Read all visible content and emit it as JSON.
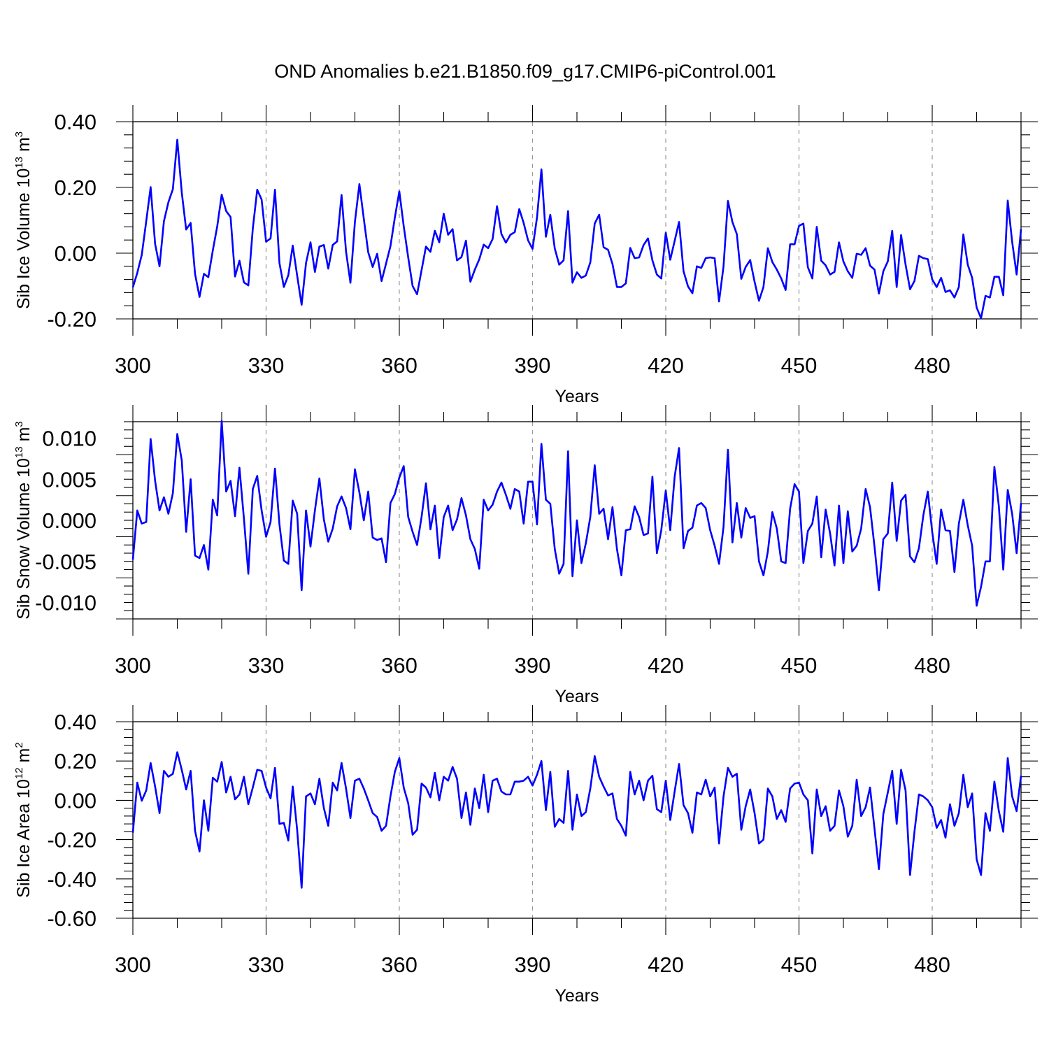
{
  "title": "OND Anomalies b.e21.B1850.f09_g17.CMIP6-piControl.001",
  "colors": {
    "line": "#0000ff",
    "axis": "#000000",
    "grid": "#999999"
  },
  "chart_data": [
    {
      "type": "line",
      "ylabel": {
        "base": "Sib Ice Volume 10",
        "exp": "13",
        "unit": " m",
        "unit_exp": "3"
      },
      "xlabel": "Years",
      "xlim": [
        300,
        500
      ],
      "ylim": [
        -0.2,
        0.4
      ],
      "xticks": [
        300,
        330,
        360,
        390,
        420,
        450,
        480
      ],
      "xtick_labels": [
        "300",
        "330",
        "360",
        "390",
        "420",
        "450",
        "480"
      ],
      "yticks": [
        -0.2,
        0.0,
        0.2,
        0.4
      ],
      "ytick_labels": [
        "-0.20",
        "0.00",
        "0.20",
        "0.40"
      ],
      "series": [
        {
          "name": "Sib Ice Volume",
          "color": "#0000ff",
          "x_start": 300,
          "values": [
            -0.104,
            -0.06,
            -0.005,
            0.097,
            0.201,
            0.028,
            -0.04,
            0.097,
            0.155,
            0.195,
            0.345,
            0.185,
            0.072,
            0.092,
            -0.063,
            -0.133,
            -0.063,
            -0.073,
            0.008,
            0.081,
            0.178,
            0.128,
            0.11,
            -0.071,
            -0.023,
            -0.089,
            -0.098,
            0.075,
            0.193,
            0.163,
            0.035,
            0.045,
            0.193,
            -0.03,
            -0.103,
            -0.067,
            0.023,
            -0.068,
            -0.157,
            -0.03,
            0.033,
            -0.057,
            0.02,
            0.025,
            -0.047,
            0.025,
            0.036,
            0.177,
            0.005,
            -0.09,
            0.095,
            0.21,
            0.105,
            0.003,
            -0.042,
            -0.002,
            -0.085,
            -0.032,
            0.021,
            0.108,
            0.188,
            0.082,
            -0.013,
            -0.1,
            -0.125,
            -0.052,
            0.02,
            0.004,
            0.068,
            0.033,
            0.12,
            0.056,
            0.073,
            -0.022,
            -0.012,
            0.038,
            -0.087,
            -0.05,
            -0.019,
            0.026,
            0.015,
            0.043,
            0.143,
            0.058,
            0.032,
            0.056,
            0.064,
            0.134,
            0.092,
            0.039,
            0.013,
            0.109,
            0.255,
            0.05,
            0.117,
            0.014,
            -0.035,
            -0.022,
            0.128,
            -0.09,
            -0.058,
            -0.075,
            -0.068,
            -0.028,
            0.09,
            0.117,
            0.018,
            0.01,
            -0.033,
            -0.103,
            -0.103,
            -0.092,
            0.016,
            -0.015,
            -0.013,
            0.025,
            0.045,
            -0.022,
            -0.065,
            -0.077,
            0.062,
            -0.02,
            0.037,
            0.095,
            -0.055,
            -0.101,
            -0.122,
            -0.04,
            -0.045,
            -0.015,
            -0.013,
            -0.015,
            -0.147,
            -0.04,
            0.159,
            0.095,
            0.058,
            -0.078,
            -0.042,
            -0.021,
            -0.087,
            -0.145,
            -0.103,
            0.015,
            -0.027,
            -0.05,
            -0.077,
            -0.112,
            0.027,
            0.027,
            0.083,
            0.09,
            -0.043,
            -0.077,
            0.08,
            -0.023,
            -0.037,
            -0.065,
            -0.057,
            0.033,
            -0.025,
            -0.055,
            -0.075,
            -0.002,
            -0.005,
            0.015,
            -0.038,
            -0.05,
            -0.123,
            -0.055,
            -0.025,
            0.068,
            -0.103,
            0.055,
            -0.035,
            -0.11,
            -0.085,
            -0.008,
            -0.015,
            -0.018,
            -0.08,
            -0.103,
            -0.075,
            -0.118,
            -0.113,
            -0.135,
            -0.103,
            0.057,
            -0.035,
            -0.075,
            -0.165,
            -0.198,
            -0.13,
            -0.135,
            -0.072,
            -0.072,
            -0.128,
            0.16,
            0.035,
            -0.065,
            0.073
          ]
        }
      ]
    },
    {
      "type": "line",
      "ylabel": {
        "base": "Sib Snow Volume 10",
        "exp": "13",
        "unit": " m",
        "unit_exp": "3"
      },
      "xlabel": "Years",
      "xlim": [
        300,
        500
      ],
      "ylim": [
        -0.012,
        0.012
      ],
      "xticks": [
        300,
        330,
        360,
        390,
        420,
        450,
        480
      ],
      "xtick_labels": [
        "300",
        "330",
        "360",
        "390",
        "420",
        "450",
        "480"
      ],
      "yticks": [
        -0.01,
        -0.005,
        0.0,
        0.005,
        0.01
      ],
      "ytick_labels": [
        "-0.010",
        "-0.005",
        "0.000",
        "0.005",
        "0.010"
      ],
      "series": [
        {
          "name": "Sib Snow Volume",
          "color": "#0000ff",
          "x_start": 300,
          "values": [
            -0.0048,
            0.0012,
            -0.0004,
            -0.0002,
            0.0099,
            0.0048,
            0.0012,
            0.0028,
            0.0008,
            0.0033,
            0.0105,
            0.0073,
            -0.0014,
            0.005,
            -0.0043,
            -0.0046,
            -0.003,
            -0.006,
            0.0025,
            0.0006,
            0.0121,
            0.0035,
            0.0048,
            0.0005,
            0.0064,
            0.0002,
            -0.0065,
            0.0038,
            0.0054,
            0.0012,
            -0.002,
            -0.0002,
            0.0063,
            -0.0005,
            -0.0049,
            -0.0053,
            0.0024,
            0.0008,
            -0.0085,
            0.0012,
            -0.0032,
            0.0012,
            0.0051,
            0.0001,
            -0.0026,
            -0.001,
            0.0017,
            0.0029,
            0.0015,
            -0.0011,
            0.0062,
            0.0034,
            0.0,
            0.0035,
            -0.0021,
            -0.0024,
            -0.0022,
            -0.0051,
            0.0021,
            0.0032,
            0.0052,
            0.0066,
            0.0004,
            -0.0014,
            -0.003,
            0.0004,
            0.0045,
            -0.0011,
            0.0018,
            -0.0046,
            0.0004,
            0.0018,
            -0.0012,
            0.0001,
            0.0027,
            0.0006,
            -0.0023,
            -0.0035,
            -0.0059,
            0.0025,
            0.0012,
            0.0019,
            0.0035,
            0.0046,
            0.0031,
            0.0014,
            0.0038,
            0.0035,
            -0.0004,
            0.0047,
            0.0047,
            -0.0005,
            0.0093,
            0.0025,
            0.002,
            -0.0035,
            -0.0065,
            -0.0053,
            0.0084,
            -0.0068,
            0.0,
            -0.0052,
            -0.0028,
            0.0004,
            0.0067,
            0.0008,
            0.0014,
            -0.0023,
            0.0016,
            -0.0035,
            -0.0067,
            -0.0012,
            -0.0011,
            0.0017,
            0.0004,
            -0.0018,
            -0.0016,
            0.0053,
            -0.004,
            -0.0012,
            0.0036,
            -0.0012,
            0.0053,
            0.0088,
            -0.0034,
            -0.0013,
            -0.0009,
            0.0018,
            0.0021,
            0.0015,
            -0.0012,
            -0.0031,
            -0.0053,
            -0.0008,
            0.0086,
            -0.0027,
            0.0021,
            -0.0021,
            0.0015,
            0.0003,
            0.0005,
            -0.005,
            -0.0067,
            -0.0038,
            0.001,
            -0.001,
            -0.005,
            -0.0052,
            0.0014,
            0.0044,
            0.0035,
            -0.0052,
            -0.0013,
            -0.0004,
            0.0029,
            -0.0045,
            0.0013,
            -0.0016,
            -0.0055,
            0.0018,
            -0.0052,
            0.0011,
            -0.0038,
            -0.0031,
            -0.001,
            0.0038,
            0.0016,
            -0.0032,
            -0.0085,
            -0.0023,
            -0.0016,
            0.0046,
            -0.0025,
            0.0024,
            0.0031,
            -0.0044,
            -0.0051,
            -0.0034,
            0.0006,
            0.0035,
            -0.0014,
            -0.0053,
            0.0013,
            -0.0012,
            -0.0013,
            -0.0063,
            -0.0004,
            0.0025,
            -0.0006,
            -0.0031,
            -0.0104,
            -0.0081,
            -0.005,
            -0.005,
            0.0065,
            0.0017,
            -0.006,
            0.0037,
            0.0008,
            -0.004,
            0.0021
          ]
        }
      ]
    },
    {
      "type": "line",
      "ylabel": {
        "base": "Sib Ice Area 10",
        "exp": "12",
        "unit": " m",
        "unit_exp": "2"
      },
      "xlabel": "Years",
      "xlim": [
        300,
        500
      ],
      "ylim": [
        -0.6,
        0.4
      ],
      "xticks": [
        300,
        330,
        360,
        390,
        420,
        450,
        480
      ],
      "xtick_labels": [
        "300",
        "330",
        "360",
        "390",
        "420",
        "450",
        "480"
      ],
      "yticks": [
        -0.6,
        -0.4,
        -0.2,
        0.0,
        0.2,
        0.4
      ],
      "ytick_labels": [
        "-0.60",
        "-0.40",
        "-0.20",
        "0.00",
        "0.20",
        "0.40"
      ],
      "series": [
        {
          "name": "Sib Ice Area",
          "color": "#0000ff",
          "x_start": 300,
          "values": [
            -0.165,
            0.09,
            -0.002,
            0.05,
            0.19,
            0.07,
            -0.065,
            0.15,
            0.12,
            0.135,
            0.245,
            0.155,
            0.055,
            0.15,
            -0.155,
            -0.26,
            0.0,
            -0.155,
            0.115,
            0.095,
            0.195,
            0.04,
            0.12,
            0.005,
            0.03,
            0.12,
            -0.02,
            0.065,
            0.155,
            0.15,
            0.065,
            0.01,
            0.165,
            -0.12,
            -0.115,
            -0.205,
            0.07,
            -0.15,
            -0.445,
            0.02,
            0.035,
            -0.02,
            0.11,
            -0.04,
            -0.13,
            0.09,
            0.05,
            0.19,
            0.06,
            -0.09,
            0.1,
            0.11,
            0.06,
            0.0,
            -0.065,
            -0.085,
            -0.155,
            -0.13,
            0.02,
            0.145,
            0.215,
            0.065,
            -0.015,
            -0.175,
            -0.15,
            0.085,
            0.065,
            0.015,
            0.14,
            0.0,
            0.12,
            0.1,
            0.17,
            0.11,
            -0.09,
            0.04,
            -0.125,
            0.06,
            -0.04,
            0.13,
            -0.06,
            0.1,
            0.11,
            0.045,
            0.03,
            0.03,
            0.095,
            0.095,
            0.1,
            0.12,
            0.075,
            0.13,
            0.2,
            -0.05,
            0.145,
            -0.135,
            -0.095,
            -0.115,
            0.15,
            -0.15,
            0.03,
            -0.08,
            -0.06,
            0.06,
            0.225,
            0.12,
            0.07,
            0.025,
            0.035,
            -0.095,
            -0.13,
            -0.18,
            0.145,
            0.03,
            0.1,
            0.0,
            0.1,
            0.125,
            -0.045,
            -0.06,
            0.1,
            -0.1,
            0.045,
            0.185,
            -0.025,
            -0.065,
            -0.165,
            0.04,
            0.03,
            0.105,
            0.02,
            0.065,
            -0.22,
            0.02,
            0.165,
            0.12,
            0.135,
            -0.15,
            -0.03,
            0.055,
            -0.065,
            -0.22,
            -0.2,
            0.06,
            0.02,
            -0.095,
            -0.05,
            -0.11,
            0.06,
            0.085,
            0.09,
            0.03,
            0.0,
            -0.27,
            0.055,
            -0.08,
            -0.03,
            -0.155,
            -0.13,
            0.05,
            -0.03,
            -0.185,
            -0.13,
            0.105,
            -0.08,
            -0.035,
            0.065,
            -0.145,
            -0.35,
            -0.07,
            0.04,
            0.15,
            -0.12,
            0.155,
            0.05,
            -0.38,
            -0.16,
            0.03,
            0.02,
            0.0,
            -0.035,
            -0.14,
            -0.1,
            -0.19,
            -0.02,
            -0.13,
            -0.065,
            0.13,
            -0.035,
            0.035,
            -0.3,
            -0.38,
            -0.065,
            -0.155,
            0.095,
            -0.055,
            -0.16,
            0.215,
            0.02,
            -0.055,
            0.125
          ]
        }
      ]
    }
  ]
}
